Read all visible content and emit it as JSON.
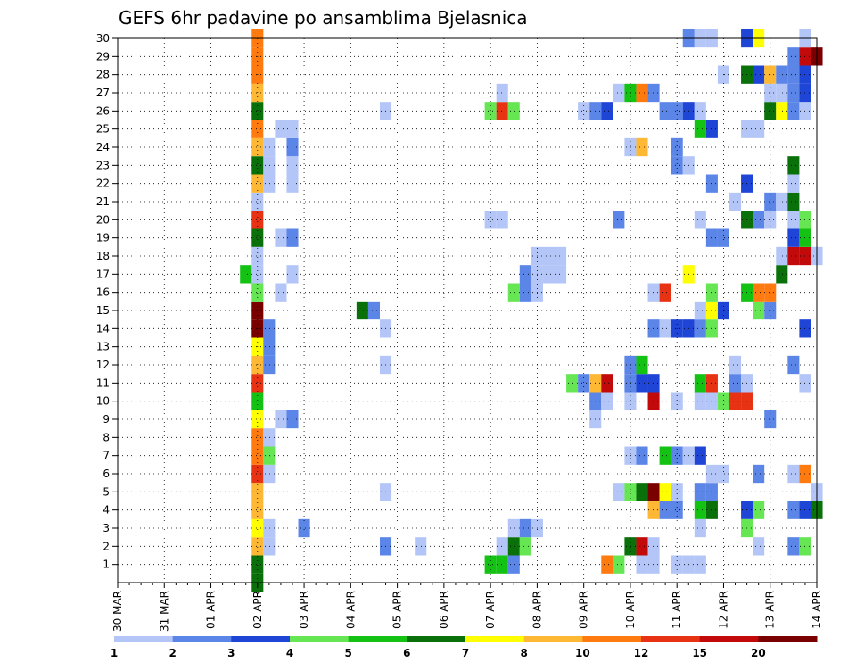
{
  "chart_data": {
    "type": "heatmap",
    "title": "GEFS 6hr padavine po ansamblima Bjelasnica",
    "xlabel": "",
    "ylabel": "",
    "x_ticks": [
      "30 MAR",
      "31 MAR",
      "01 APR",
      "02 APR",
      "03 APR",
      "04 APR",
      "05 APR",
      "06 APR",
      "07 APR",
      "08 APR",
      "09 APR",
      "10 APR",
      "11 APR",
      "12 APR",
      "13 APR",
      "14 APR"
    ],
    "x_unit": "days since 30 MAR, 00Z; 6-hourly steps",
    "xlim": [
      0,
      15
    ],
    "y_ticks": [
      "1",
      "2",
      "3",
      "4",
      "5",
      "6",
      "7",
      "8",
      "9",
      "10",
      "11",
      "12",
      "13",
      "14",
      "15",
      "16",
      "17",
      "18",
      "19",
      "20",
      "21",
      "22",
      "23",
      "24",
      "25",
      "26",
      "27",
      "28",
      "29",
      "30"
    ],
    "ylim": [
      0,
      30
    ],
    "grid": true,
    "colorbar": {
      "labels": [
        "1",
        "2",
        "3",
        "4",
        "5",
        "6",
        "7",
        "8",
        "10",
        "12",
        "15",
        "20"
      ],
      "colors": [
        "#b3c6f7",
        "#5c85e8",
        "#1f45d6",
        "#66e653",
        "#14c214",
        "#0a700a",
        "#ffff00",
        "#ffb833",
        "#ff7a0f",
        "#e83214",
        "#c20a0a",
        "#7a0000"
      ]
    },
    "cells": [
      [
        3.0,
        1,
        6
      ],
      [
        3.0,
        2,
        8
      ],
      [
        3.0,
        3,
        7
      ],
      [
        3.0,
        4,
        8
      ],
      [
        3.0,
        5,
        8
      ],
      [
        3.0,
        6,
        10
      ],
      [
        3.0,
        7,
        9
      ],
      [
        3.0,
        8,
        9
      ],
      [
        3.0,
        9,
        7
      ],
      [
        3.0,
        10,
        5
      ],
      [
        3.0,
        11,
        10
      ],
      [
        3.0,
        12,
        8
      ],
      [
        3.0,
        13,
        7
      ],
      [
        3.0,
        14,
        12
      ],
      [
        3.0,
        15,
        12
      ],
      [
        3.0,
        16,
        4
      ],
      [
        3.0,
        17,
        1
      ],
      [
        3.0,
        18,
        1
      ],
      [
        3.0,
        19,
        6
      ],
      [
        3.0,
        20,
        10
      ],
      [
        3.0,
        21,
        1
      ],
      [
        3.0,
        22,
        8
      ],
      [
        3.0,
        23,
        6
      ],
      [
        3.0,
        24,
        8
      ],
      [
        3.0,
        25,
        9
      ],
      [
        3.0,
        26,
        6
      ],
      [
        3.0,
        27,
        8
      ],
      [
        3.0,
        28,
        9
      ],
      [
        3.0,
        29,
        9
      ],
      [
        3.0,
        30,
        9
      ],
      [
        3.0,
        0,
        6
      ],
      [
        2.75,
        17,
        5
      ],
      [
        3.25,
        2,
        1
      ],
      [
        3.25,
        3,
        1
      ],
      [
        3.25,
        6,
        1
      ],
      [
        3.25,
        7,
        4
      ],
      [
        3.25,
        8,
        1
      ],
      [
        3.25,
        12,
        2
      ],
      [
        3.25,
        13,
        2
      ],
      [
        3.25,
        14,
        2
      ],
      [
        3.25,
        22,
        1
      ],
      [
        3.25,
        23,
        1
      ],
      [
        3.25,
        24,
        1
      ],
      [
        3.5,
        9,
        1
      ],
      [
        3.5,
        16,
        1
      ],
      [
        3.5,
        19,
        1
      ],
      [
        3.5,
        25,
        1
      ],
      [
        3.75,
        9,
        2
      ],
      [
        3.75,
        17,
        1
      ],
      [
        3.75,
        19,
        2
      ],
      [
        3.75,
        22,
        1
      ],
      [
        3.75,
        23,
        1
      ],
      [
        3.75,
        24,
        2
      ],
      [
        3.75,
        25,
        1
      ],
      [
        4.0,
        3,
        2
      ],
      [
        5.25,
        15,
        6
      ],
      [
        5.5,
        15,
        2
      ],
      [
        5.75,
        2,
        2
      ],
      [
        5.75,
        5,
        1
      ],
      [
        5.75,
        12,
        1
      ],
      [
        5.75,
        14,
        1
      ],
      [
        5.75,
        26,
        1
      ],
      [
        6.5,
        2,
        1
      ],
      [
        8.0,
        1,
        5
      ],
      [
        8.0,
        20,
        1
      ],
      [
        8.0,
        26,
        4
      ],
      [
        8.25,
        1,
        5
      ],
      [
        8.25,
        20,
        1
      ],
      [
        8.25,
        26,
        10
      ],
      [
        8.25,
        2,
        1
      ],
      [
        8.25,
        27,
        1
      ],
      [
        8.5,
        1,
        2
      ],
      [
        8.5,
        2,
        6
      ],
      [
        8.5,
        3,
        1
      ],
      [
        8.5,
        16,
        4
      ],
      [
        8.5,
        26,
        4
      ],
      [
        8.75,
        2,
        4
      ],
      [
        8.75,
        16,
        2
      ],
      [
        8.75,
        17,
        2
      ],
      [
        8.75,
        3,
        2
      ],
      [
        9.0,
        3,
        1
      ],
      [
        9.0,
        16,
        1
      ],
      [
        9.0,
        17,
        1
      ],
      [
        9.0,
        18,
        1
      ],
      [
        9.25,
        17,
        1
      ],
      [
        9.25,
        18,
        1
      ],
      [
        9.5,
        17,
        1
      ],
      [
        9.5,
        18,
        1
      ],
      [
        9.75,
        11,
        4
      ],
      [
        10.0,
        11,
        2
      ],
      [
        10.0,
        26,
        1
      ],
      [
        10.25,
        11,
        8
      ],
      [
        10.25,
        9,
        1
      ],
      [
        10.25,
        26,
        2
      ],
      [
        10.25,
        10,
        2
      ],
      [
        10.5,
        11,
        11
      ],
      [
        10.5,
        10,
        1
      ],
      [
        10.5,
        26,
        3
      ],
      [
        10.5,
        1,
        9
      ],
      [
        10.75,
        1,
        4
      ],
      [
        10.75,
        27,
        1
      ],
      [
        10.75,
        20,
        2
      ],
      [
        10.75,
        5,
        1
      ],
      [
        11.0,
        27,
        5
      ],
      [
        11.0,
        2,
        6
      ],
      [
        11.0,
        5,
        4
      ],
      [
        11.0,
        7,
        1
      ],
      [
        11.0,
        10,
        1
      ],
      [
        11.0,
        11,
        2
      ],
      [
        11.0,
        12,
        2
      ],
      [
        11.0,
        24,
        1
      ],
      [
        11.25,
        27,
        9
      ],
      [
        11.25,
        2,
        11
      ],
      [
        11.25,
        5,
        6
      ],
      [
        11.25,
        7,
        2
      ],
      [
        11.25,
        11,
        3
      ],
      [
        11.25,
        12,
        5
      ],
      [
        11.25,
        1,
        1
      ],
      [
        11.25,
        24,
        8
      ],
      [
        11.5,
        27,
        2
      ],
      [
        11.5,
        1,
        1
      ],
      [
        11.5,
        2,
        1
      ],
      [
        11.5,
        4,
        8
      ],
      [
        11.5,
        5,
        12
      ],
      [
        11.5,
        10,
        11
      ],
      [
        11.5,
        11,
        3
      ],
      [
        11.5,
        14,
        2
      ],
      [
        11.5,
        16,
        1
      ],
      [
        11.75,
        4,
        2
      ],
      [
        11.75,
        5,
        7
      ],
      [
        11.75,
        7,
        5
      ],
      [
        11.75,
        14,
        1
      ],
      [
        11.75,
        16,
        10
      ],
      [
        11.75,
        26,
        2
      ],
      [
        12.0,
        4,
        2
      ],
      [
        12.0,
        5,
        1
      ],
      [
        12.0,
        7,
        2
      ],
      [
        12.0,
        10,
        1
      ],
      [
        12.0,
        14,
        3
      ],
      [
        12.0,
        23,
        2
      ],
      [
        12.0,
        24,
        2
      ],
      [
        12.0,
        26,
        2
      ],
      [
        12.0,
        1,
        1
      ],
      [
        12.25,
        1,
        1
      ],
      [
        12.25,
        7,
        1
      ],
      [
        12.25,
        14,
        3
      ],
      [
        12.25,
        17,
        7
      ],
      [
        12.25,
        26,
        3
      ],
      [
        12.25,
        23,
        1
      ],
      [
        12.25,
        30,
        2
      ],
      [
        12.5,
        1,
        1
      ],
      [
        12.5,
        3,
        1
      ],
      [
        12.5,
        4,
        5
      ],
      [
        12.5,
        5,
        2
      ],
      [
        12.5,
        7,
        3
      ],
      [
        12.5,
        10,
        1
      ],
      [
        12.5,
        11,
        5
      ],
      [
        12.5,
        14,
        2
      ],
      [
        12.5,
        15,
        1
      ],
      [
        12.5,
        20,
        1
      ],
      [
        12.5,
        26,
        1
      ],
      [
        12.5,
        25,
        5
      ],
      [
        12.5,
        30,
        1
      ],
      [
        12.75,
        4,
        6
      ],
      [
        12.75,
        5,
        2
      ],
      [
        12.75,
        6,
        1
      ],
      [
        12.75,
        10,
        1
      ],
      [
        12.75,
        11,
        10
      ],
      [
        12.75,
        14,
        4
      ],
      [
        12.75,
        15,
        7
      ],
      [
        12.75,
        16,
        4
      ],
      [
        12.75,
        19,
        2
      ],
      [
        12.75,
        22,
        2
      ],
      [
        12.75,
        25,
        3
      ],
      [
        12.75,
        30,
        1
      ],
      [
        13.0,
        6,
        1
      ],
      [
        13.0,
        10,
        4
      ],
      [
        13.0,
        15,
        3
      ],
      [
        13.0,
        19,
        2
      ],
      [
        13.0,
        28,
        1
      ],
      [
        13.25,
        10,
        10
      ],
      [
        13.25,
        11,
        2
      ],
      [
        13.25,
        21,
        1
      ],
      [
        13.25,
        12,
        1
      ],
      [
        13.5,
        10,
        10
      ],
      [
        13.5,
        11,
        1
      ],
      [
        13.5,
        3,
        4
      ],
      [
        13.5,
        4,
        3
      ],
      [
        13.5,
        16,
        5
      ],
      [
        13.5,
        20,
        6
      ],
      [
        13.5,
        22,
        3
      ],
      [
        13.5,
        25,
        1
      ],
      [
        13.5,
        28,
        6
      ],
      [
        13.5,
        30,
        3
      ],
      [
        13.75,
        2,
        1
      ],
      [
        13.75,
        4,
        4
      ],
      [
        13.75,
        6,
        2
      ],
      [
        13.75,
        15,
        4
      ],
      [
        13.75,
        16,
        9
      ],
      [
        13.75,
        20,
        2
      ],
      [
        13.75,
        25,
        1
      ],
      [
        13.75,
        28,
        3
      ],
      [
        13.75,
        30,
        7
      ],
      [
        14.0,
        9,
        2
      ],
      [
        14.0,
        15,
        2
      ],
      [
        14.0,
        16,
        9
      ],
      [
        14.0,
        20,
        1
      ],
      [
        14.0,
        21,
        2
      ],
      [
        14.0,
        26,
        6
      ],
      [
        14.0,
        27,
        1
      ],
      [
        14.0,
        28,
        8
      ],
      [
        14.25,
        17,
        6
      ],
      [
        14.25,
        18,
        1
      ],
      [
        14.25,
        21,
        1
      ],
      [
        14.25,
        26,
        7
      ],
      [
        14.25,
        27,
        1
      ],
      [
        14.25,
        28,
        2
      ],
      [
        14.5,
        2,
        2
      ],
      [
        14.5,
        4,
        2
      ],
      [
        14.5,
        6,
        1
      ],
      [
        14.5,
        12,
        2
      ],
      [
        14.5,
        18,
        11
      ],
      [
        14.5,
        19,
        3
      ],
      [
        14.5,
        20,
        1
      ],
      [
        14.5,
        21,
        6
      ],
      [
        14.5,
        22,
        1
      ],
      [
        14.5,
        23,
        6
      ],
      [
        14.5,
        26,
        2
      ],
      [
        14.5,
        27,
        2
      ],
      [
        14.5,
        28,
        2
      ],
      [
        14.5,
        29,
        2
      ],
      [
        14.75,
        2,
        4
      ],
      [
        14.75,
        4,
        3
      ],
      [
        14.75,
        6,
        9
      ],
      [
        14.75,
        11,
        1
      ],
      [
        14.75,
        14,
        3
      ],
      [
        14.75,
        18,
        11
      ],
      [
        14.75,
        19,
        5
      ],
      [
        14.75,
        20,
        4
      ],
      [
        14.75,
        26,
        1
      ],
      [
        14.75,
        27,
        3
      ],
      [
        14.75,
        28,
        3
      ],
      [
        14.75,
        29,
        11
      ],
      [
        14.75,
        30,
        1
      ],
      [
        15.0,
        29,
        12
      ],
      [
        15.0,
        18,
        1
      ],
      [
        15.0,
        5,
        1
      ],
      [
        15.0,
        4,
        6
      ]
    ]
  }
}
